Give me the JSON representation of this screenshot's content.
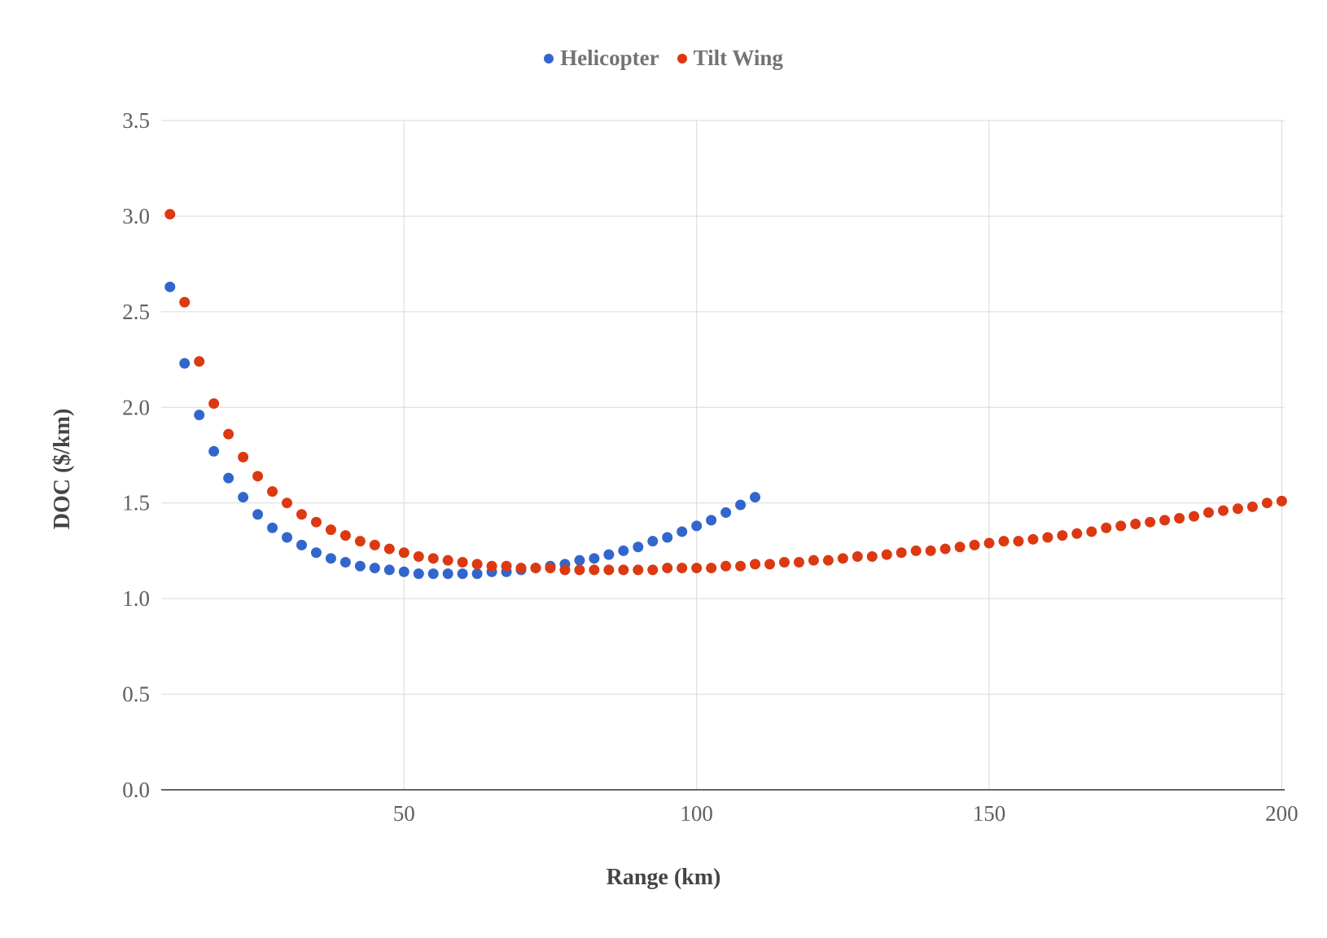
{
  "legend": {
    "items": [
      {
        "label": "Helicopter",
        "color": "#3366cc"
      },
      {
        "label": "Tilt Wing",
        "color": "#dc3912"
      }
    ]
  },
  "chart_data": {
    "type": "scatter",
    "title": "",
    "xlabel": "Range (km)",
    "ylabel": "DOC ($/km)",
    "xlim": [
      8.5,
      200.5
    ],
    "ylim": [
      0,
      3.5
    ],
    "x_ticks": [
      50,
      100,
      150,
      200
    ],
    "y_ticks": [
      0.0,
      0.5,
      1.0,
      1.5,
      2.0,
      2.5,
      3.0,
      3.5
    ],
    "x_tick_labels": [
      "50",
      "100",
      "150",
      "200"
    ],
    "y_tick_labels": [
      "0.0",
      "0.5",
      "1.0",
      "1.5",
      "2.0",
      "2.5",
      "3.0",
      "3.5"
    ],
    "grid": true,
    "legend_position": "top-center",
    "series": [
      {
        "name": "Helicopter",
        "color": "#3366cc",
        "x": [
          10,
          12.5,
          15,
          17.5,
          20,
          22.5,
          25,
          27.5,
          30,
          32.5,
          35,
          37.5,
          40,
          42.5,
          45,
          47.5,
          50,
          52.5,
          55,
          57.5,
          60,
          62.5,
          65,
          67.5,
          70,
          72.5,
          75,
          77.5,
          80,
          82.5,
          85,
          87.5,
          90,
          92.5,
          95,
          97.5,
          100,
          102.5,
          105,
          107.5,
          110
        ],
        "y": [
          2.63,
          2.23,
          1.96,
          1.77,
          1.63,
          1.53,
          1.44,
          1.37,
          1.32,
          1.28,
          1.24,
          1.21,
          1.19,
          1.17,
          1.16,
          1.15,
          1.14,
          1.13,
          1.13,
          1.13,
          1.13,
          1.13,
          1.14,
          1.14,
          1.15,
          1.16,
          1.17,
          1.18,
          1.2,
          1.21,
          1.23,
          1.25,
          1.27,
          1.3,
          1.32,
          1.35,
          1.38,
          1.41,
          1.45,
          1.49,
          1.53
        ]
      },
      {
        "name": "Tilt Wing",
        "color": "#dc3912",
        "x": [
          10,
          12.5,
          15,
          17.5,
          20,
          22.5,
          25,
          27.5,
          30,
          32.5,
          35,
          37.5,
          40,
          42.5,
          45,
          47.5,
          50,
          52.5,
          55,
          57.5,
          60,
          62.5,
          65,
          67.5,
          70,
          72.5,
          75,
          77.5,
          80,
          82.5,
          85,
          87.5,
          90,
          92.5,
          95,
          97.5,
          100,
          102.5,
          105,
          107.5,
          110,
          112.5,
          115,
          117.5,
          120,
          122.5,
          125,
          127.5,
          130,
          132.5,
          135,
          137.5,
          140,
          142.5,
          145,
          147.5,
          150,
          152.5,
          155,
          157.5,
          160,
          162.5,
          165,
          167.5,
          170,
          172.5,
          175,
          177.5,
          180,
          182.5,
          185,
          187.5,
          190,
          192.5,
          195,
          197.5,
          200
        ],
        "y": [
          3.01,
          2.55,
          2.24,
          2.02,
          1.86,
          1.74,
          1.64,
          1.56,
          1.5,
          1.44,
          1.4,
          1.36,
          1.33,
          1.3,
          1.28,
          1.26,
          1.24,
          1.22,
          1.21,
          1.2,
          1.19,
          1.18,
          1.17,
          1.17,
          1.16,
          1.16,
          1.16,
          1.15,
          1.15,
          1.15,
          1.15,
          1.15,
          1.15,
          1.15,
          1.16,
          1.16,
          1.16,
          1.16,
          1.17,
          1.17,
          1.18,
          1.18,
          1.19,
          1.19,
          1.2,
          1.2,
          1.21,
          1.22,
          1.22,
          1.23,
          1.24,
          1.25,
          1.25,
          1.26,
          1.27,
          1.28,
          1.29,
          1.3,
          1.3,
          1.31,
          1.32,
          1.33,
          1.34,
          1.35,
          1.37,
          1.38,
          1.39,
          1.4,
          1.41,
          1.42,
          1.43,
          1.45,
          1.46,
          1.47,
          1.48,
          1.5,
          1.51
        ]
      }
    ]
  }
}
